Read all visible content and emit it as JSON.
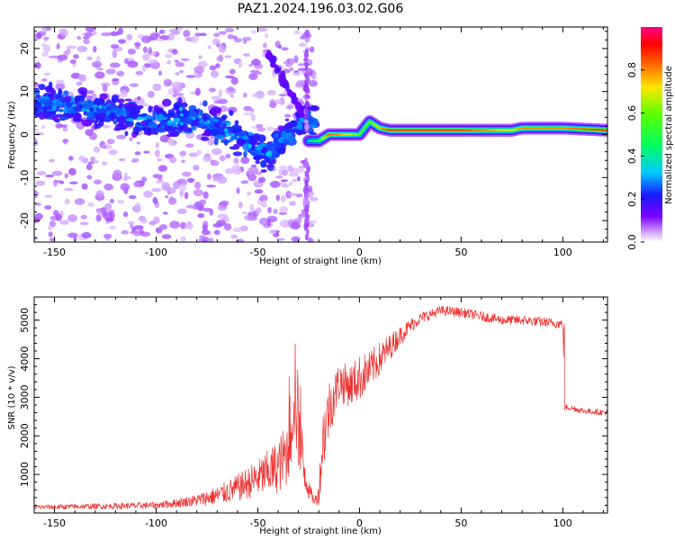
{
  "figure": {
    "title": "PAZ1.2024.196.03.02.G06"
  },
  "chart_data": [
    {
      "type": "heatmap",
      "xlabel": "Height of straight line (km)",
      "ylabel": "Frequency (Hz)",
      "xlim": [
        -160,
        122
      ],
      "ylim": [
        -25,
        25
      ],
      "xticks": [
        -150,
        -100,
        -50,
        0,
        50,
        100
      ],
      "yticks": [
        -20,
        -10,
        0,
        10,
        20
      ],
      "colorbar": {
        "label": "Normalized spectral amplitude",
        "range": [
          0.0,
          1.0
        ],
        "ticks": [
          "0.0",
          "0.2",
          "0.4",
          "0.6",
          "0.8"
        ],
        "colormap": "gist_rainbow_r (purple at 0 to red/magenta at 1)"
      },
      "ridge": {
        "description": "dominant frequency ridge",
        "x": [
          -25,
          -20,
          -15,
          -10,
          -5,
          0,
          5,
          10,
          15,
          30,
          50,
          75,
          80,
          100,
          122
        ],
        "y": [
          -1.5,
          -1.5,
          0,
          0,
          0,
          0,
          3,
          1.5,
          1,
          1,
          1,
          1,
          1.5,
          1.5,
          1
        ],
        "amplitude": [
          0.4,
          0.5,
          0.85,
          0.8,
          0.7,
          0.6,
          0.6,
          0.75,
          0.9,
          0.9,
          0.9,
          0.7,
          0.8,
          0.8,
          0.9
        ]
      },
      "diffuse_region": {
        "x_range": [
          -160,
          -22
        ],
        "center_freq": [
          [
            -150,
            7
          ],
          [
            -130,
            6
          ],
          [
            -100,
            3
          ],
          [
            -80,
            4
          ],
          [
            -60,
            0
          ],
          [
            -45,
            -5
          ],
          [
            -30,
            3
          ]
        ],
        "amplitude_typical": 0.15
      },
      "grid": false
    },
    {
      "type": "line",
      "xlabel": "Height of straight line (km)",
      "ylabel": "SNR (10 * v/v)",
      "xlim": [
        -160,
        122
      ],
      "ylim": [
        0,
        5600
      ],
      "xticks": [
        -150,
        -100,
        -50,
        0,
        50,
        100
      ],
      "yticks": [
        1000,
        2000,
        3000,
        4000,
        5000
      ],
      "series": [
        {
          "color": "#ee3333",
          "envelope_x": [
            -160,
            -120,
            -100,
            -90,
            -80,
            -70,
            -60,
            -50,
            -40,
            -35,
            -32,
            -30,
            -28,
            -25,
            -22,
            -20,
            -18,
            -15,
            -12,
            -10,
            -5,
            0,
            5,
            10,
            15,
            20,
            25,
            30,
            40,
            50,
            60,
            70,
            80,
            90,
            100,
            101,
            102,
            110,
            122
          ],
          "envelope_y": [
            150,
            180,
            200,
            260,
            330,
            450,
            650,
            900,
            1200,
            1600,
            3500,
            2200,
            1400,
            600,
            300,
            500,
            1900,
            2700,
            3100,
            3400,
            3300,
            3500,
            3700,
            4000,
            4300,
            4600,
            4850,
            5050,
            5250,
            5200,
            5100,
            5000,
            5000,
            4950,
            4900,
            2700,
            2750,
            2650,
            2600
          ],
          "noise_amplitude": [
            60,
            80,
            90,
            120,
            160,
            250,
            350,
            500,
            700,
            900,
            1800,
            1200,
            800,
            250,
            120,
            300,
            900,
            800,
            600,
            550,
            550,
            600,
            500,
            450,
            350,
            250,
            200,
            150,
            130,
            130,
            130,
            130,
            130,
            130,
            130,
            80,
            80,
            80,
            80
          ]
        }
      ],
      "grid": false
    }
  ]
}
